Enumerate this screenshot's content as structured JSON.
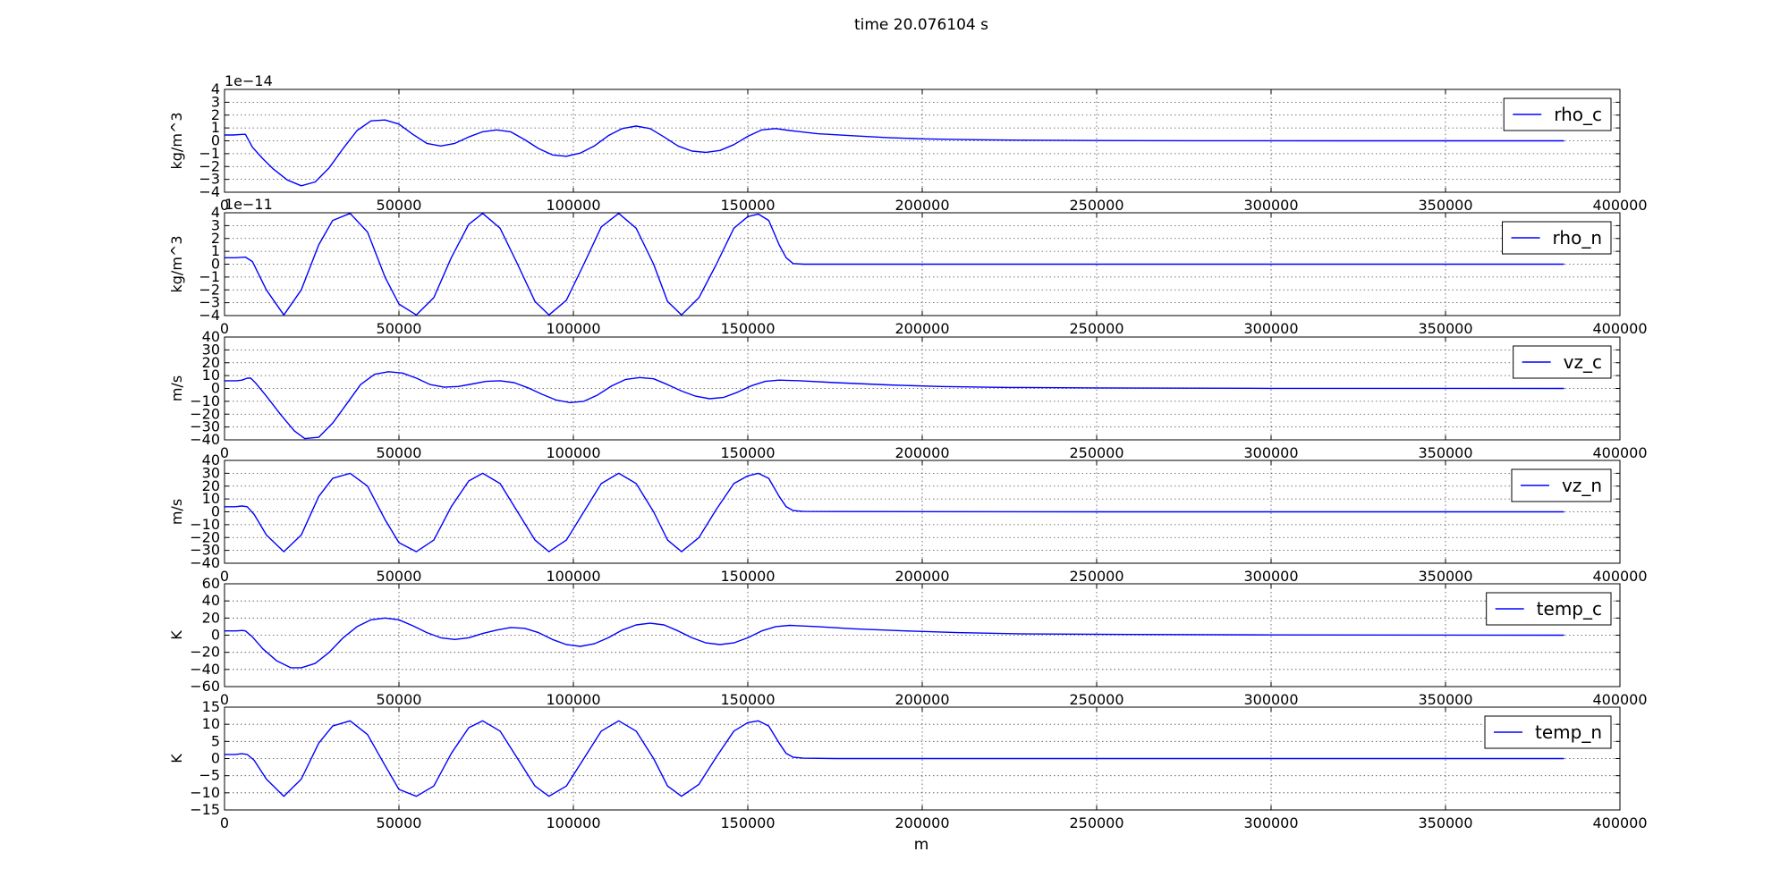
{
  "figure": {
    "title": "time 20.076104 s",
    "xlabel": "m"
  },
  "colors": {
    "line": "#0000ff",
    "grid": "#000000",
    "axes": "#000000",
    "background": "#ffffff"
  },
  "chart_data": [
    {
      "type": "line",
      "name": "rho_c",
      "legend": "rho_c",
      "legend_loc": "upper right",
      "ylabel": "kg/m^3",
      "offset_label": "1e−14",
      "scale_note": "values in units of 1e-14",
      "xlim": [
        0,
        400000
      ],
      "ylim": [
        -4,
        4
      ],
      "xticks": [
        0,
        50000,
        100000,
        150000,
        200000,
        250000,
        300000,
        350000,
        400000
      ],
      "xtick_labels": [
        "0",
        "50000",
        "100000",
        "150000",
        "200000",
        "250000",
        "300000",
        "350000",
        "400000"
      ],
      "yticks": [
        -4,
        -3,
        -2,
        -1,
        0,
        1,
        2,
        3,
        4
      ],
      "ytick_labels": [
        "−4",
        "−3",
        "−2",
        "−1",
        "0",
        "1",
        "2",
        "3",
        "4"
      ],
      "grid": true,
      "x": [
        0,
        2500,
        5000,
        6000,
        8000,
        11000,
        14000,
        18000,
        22000,
        26000,
        30000,
        34000,
        38000,
        42000,
        46000,
        50000,
        54000,
        58000,
        62000,
        66000,
        70000,
        74000,
        78000,
        82000,
        86000,
        90000,
        94000,
        98000,
        102000,
        106000,
        110000,
        114000,
        118000,
        122000,
        126000,
        130000,
        134000,
        138000,
        142000,
        146000,
        150000,
        154000,
        158000,
        162000,
        170000,
        180000,
        190000,
        200000,
        215000,
        230000,
        250000,
        280000,
        320000,
        384000
      ],
      "y": [
        0.45,
        0.45,
        0.5,
        0.5,
        -0.5,
        -1.4,
        -2.2,
        -3.05,
        -3.5,
        -3.2,
        -2.1,
        -0.6,
        0.8,
        1.55,
        1.62,
        1.3,
        0.5,
        -0.2,
        -0.4,
        -0.2,
        0.3,
        0.7,
        0.85,
        0.7,
        0.1,
        -0.6,
        -1.1,
        -1.2,
        -0.95,
        -0.4,
        0.4,
        0.95,
        1.15,
        0.95,
        0.3,
        -0.4,
        -0.8,
        -0.9,
        -0.75,
        -0.3,
        0.35,
        0.85,
        0.95,
        0.8,
        0.55,
        0.4,
        0.25,
        0.15,
        0.08,
        0.05,
        0.02,
        0.01,
        0,
        0
      ]
    },
    {
      "type": "line",
      "name": "rho_n",
      "legend": "rho_n",
      "legend_loc": "upper right",
      "ylabel": "kg/m^3",
      "offset_label": "1e−11",
      "scale_note": "values in units of 1e-11",
      "xlim": [
        0,
        400000
      ],
      "ylim": [
        -4,
        4
      ],
      "xticks": [
        0,
        50000,
        100000,
        150000,
        200000,
        250000,
        300000,
        350000,
        400000
      ],
      "xtick_labels": [
        "0",
        "50000",
        "100000",
        "150000",
        "200000",
        "250000",
        "300000",
        "350000",
        "400000"
      ],
      "yticks": [
        -4,
        -3,
        -2,
        -1,
        0,
        1,
        2,
        3,
        4
      ],
      "ytick_labels": [
        "−4",
        "−3",
        "−2",
        "−1",
        "0",
        "1",
        "2",
        "3",
        "4"
      ],
      "grid": true,
      "x": [
        0,
        3000,
        6000,
        8000,
        12000,
        17000,
        22000,
        27000,
        31000,
        36000,
        41000,
        46000,
        50000,
        55000,
        60000,
        65000,
        70000,
        74000,
        79000,
        84000,
        89000,
        93000,
        98000,
        103000,
        108000,
        113000,
        118000,
        123000,
        127000,
        131000,
        136000,
        141000,
        146000,
        150000,
        153000,
        156000,
        159000,
        161000,
        163000,
        166000,
        175000,
        250000,
        384000
      ],
      "y": [
        0.5,
        0.5,
        0.55,
        0.2,
        -2.0,
        -3.95,
        -2.0,
        1.5,
        3.4,
        3.95,
        2.5,
        -1.0,
        -3.1,
        -3.95,
        -2.6,
        0.5,
        3.1,
        3.95,
        2.8,
        0,
        -2.9,
        -3.95,
        -2.8,
        0,
        2.9,
        3.95,
        2.8,
        0,
        -2.9,
        -3.95,
        -2.6,
        0,
        2.8,
        3.7,
        3.9,
        3.4,
        1.5,
        0.5,
        0.05,
        0.0,
        0,
        0,
        0
      ]
    },
    {
      "type": "line",
      "name": "vz_c",
      "legend": "vz_c",
      "legend_loc": "upper right",
      "ylabel": "m/s",
      "xlim": [
        0,
        400000
      ],
      "ylim": [
        -40,
        40
      ],
      "xticks": [
        0,
        50000,
        100000,
        150000,
        200000,
        250000,
        300000,
        350000,
        400000
      ],
      "xtick_labels": [
        "0",
        "50000",
        "100000",
        "150000",
        "200000",
        "250000",
        "300000",
        "350000",
        "400000"
      ],
      "yticks": [
        -40,
        -30,
        -20,
        -10,
        0,
        10,
        20,
        30,
        40
      ],
      "ytick_labels": [
        "−40",
        "−30",
        "−20",
        "−10",
        "0",
        "10",
        "20",
        "30",
        "40"
      ],
      "grid": true,
      "x": [
        0,
        3500,
        5000,
        6500,
        7500,
        9000,
        12000,
        16000,
        20000,
        23000,
        27000,
        31000,
        35000,
        39000,
        43000,
        47000,
        51000,
        55000,
        59000,
        63000,
        67000,
        71000,
        75000,
        79000,
        83000,
        87000,
        91000,
        95000,
        99000,
        103000,
        107000,
        111000,
        115000,
        119000,
        123000,
        127000,
        131000,
        135000,
        139000,
        143000,
        147000,
        151000,
        155000,
        159000,
        165000,
        175000,
        190000,
        205000,
        225000,
        250000,
        300000,
        384000
      ],
      "y": [
        6,
        6,
        6.5,
        8,
        8,
        4,
        -6,
        -20,
        -33,
        -39,
        -38,
        -27,
        -12,
        3,
        11,
        13,
        12,
        8,
        3,
        1,
        1.5,
        3.5,
        5.5,
        6,
        4.5,
        0.5,
        -4.5,
        -9,
        -11,
        -10,
        -5,
        2,
        7,
        8.5,
        7.5,
        3,
        -2,
        -6,
        -8,
        -7,
        -3,
        2,
        5.5,
        6.5,
        6,
        4.5,
        2.8,
        1.5,
        0.8,
        0.4,
        0.1,
        0
      ]
    },
    {
      "type": "line",
      "name": "vz_n",
      "legend": "vz_n",
      "legend_loc": "upper right",
      "ylabel": "m/s",
      "xlim": [
        0,
        400000
      ],
      "ylim": [
        -40,
        40
      ],
      "xticks": [
        0,
        50000,
        100000,
        150000,
        200000,
        250000,
        300000,
        350000,
        400000
      ],
      "xtick_labels": [
        "0",
        "50000",
        "100000",
        "150000",
        "200000",
        "250000",
        "300000",
        "350000",
        "400000"
      ],
      "yticks": [
        -40,
        -30,
        -20,
        -10,
        0,
        10,
        20,
        30,
        40
      ],
      "ytick_labels": [
        "−40",
        "−30",
        "−20",
        "−10",
        "0",
        "10",
        "20",
        "30",
        "40"
      ],
      "grid": true,
      "x": [
        0,
        3000,
        5000,
        6500,
        8500,
        12000,
        17000,
        22000,
        27000,
        31000,
        36000,
        41000,
        46000,
        50000,
        55000,
        60000,
        65000,
        70000,
        74000,
        79000,
        84000,
        89000,
        93000,
        98000,
        103000,
        108000,
        113000,
        118000,
        123000,
        127000,
        131000,
        136000,
        141000,
        146000,
        150000,
        153000,
        156000,
        159000,
        161000,
        163000,
        166000,
        175000,
        250000,
        384000
      ],
      "y": [
        4,
        4,
        4.5,
        4,
        -2,
        -18,
        -31,
        -18,
        12,
        26,
        30,
        20,
        -6,
        -24,
        -31,
        -22,
        4,
        24,
        30,
        22,
        0,
        -22,
        -31,
        -22,
        0,
        22,
        30,
        22,
        0,
        -22,
        -31,
        -20,
        2,
        22,
        28,
        30,
        26,
        12,
        4,
        1,
        0.3,
        0.2,
        0,
        0
      ]
    },
    {
      "type": "line",
      "name": "temp_c",
      "legend": "temp_c",
      "legend_loc": "upper right",
      "ylabel": "K",
      "xlim": [
        0,
        400000
      ],
      "ylim": [
        -60,
        60
      ],
      "xticks": [
        0,
        50000,
        100000,
        150000,
        200000,
        250000,
        300000,
        350000,
        400000
      ],
      "xtick_labels": [
        "0",
        "50000",
        "100000",
        "150000",
        "200000",
        "250000",
        "300000",
        "350000",
        "400000"
      ],
      "yticks": [
        -60,
        -40,
        -20,
        0,
        20,
        40,
        60
      ],
      "ytick_labels": [
        "−60",
        "−40",
        "−20",
        "0",
        "20",
        "40",
        "60"
      ],
      "grid": true,
      "x": [
        0,
        3500,
        5000,
        6000,
        8000,
        11000,
        15000,
        19000,
        22000,
        26000,
        30000,
        34000,
        38000,
        42000,
        46000,
        50000,
        54000,
        58000,
        62000,
        66000,
        70000,
        74000,
        78000,
        82000,
        86000,
        90000,
        94000,
        98000,
        102000,
        106000,
        110000,
        114000,
        118000,
        122000,
        126000,
        130000,
        134000,
        138000,
        142000,
        146000,
        150000,
        154000,
        158000,
        162000,
        170000,
        180000,
        195000,
        210000,
        230000,
        260000,
        300000,
        384000
      ],
      "y": [
        5,
        5,
        5.5,
        5,
        -2,
        -16,
        -30,
        -38,
        -38,
        -33,
        -20,
        -3,
        10,
        18,
        20,
        18,
        11,
        3,
        -3,
        -5,
        -3,
        2,
        6,
        9,
        8,
        3,
        -5,
        -11,
        -13,
        -10,
        -3,
        6,
        12,
        14,
        12,
        5,
        -3,
        -9,
        -11,
        -9,
        -3,
        5,
        10,
        11.5,
        10,
        7.5,
        5,
        3,
        1.5,
        0.8,
        0.3,
        0
      ]
    },
    {
      "type": "line",
      "name": "temp_n",
      "legend": "temp_n",
      "legend_loc": "upper right",
      "ylabel": "K",
      "xlim": [
        0,
        400000
      ],
      "ylim": [
        -15,
        15
      ],
      "xticks": [
        0,
        50000,
        100000,
        150000,
        200000,
        250000,
        300000,
        350000,
        400000
      ],
      "xtick_labels": [
        "0",
        "50000",
        "100000",
        "150000",
        "200000",
        "250000",
        "300000",
        "350000",
        "400000"
      ],
      "yticks": [
        -15,
        -10,
        -5,
        0,
        5,
        10,
        15
      ],
      "ytick_labels": [
        "−15",
        "−10",
        "−5",
        "0",
        "5",
        "10",
        "15"
      ],
      "grid": true,
      "x": [
        0,
        3000,
        5000,
        6500,
        8500,
        12000,
        17000,
        22000,
        27000,
        31000,
        36000,
        41000,
        46000,
        50000,
        55000,
        60000,
        65000,
        70000,
        74000,
        79000,
        84000,
        89000,
        93000,
        98000,
        103000,
        108000,
        113000,
        118000,
        123000,
        127000,
        131000,
        136000,
        141000,
        146000,
        150000,
        153000,
        156000,
        159000,
        161000,
        163000,
        166000,
        175000,
        250000,
        384000
      ],
      "y": [
        1.2,
        1.2,
        1.4,
        1.2,
        -0.5,
        -6,
        -11,
        -6,
        4.5,
        9.5,
        11,
        7,
        -2,
        -9,
        -11,
        -8,
        1.5,
        9,
        11,
        8,
        0,
        -8,
        -11,
        -8,
        0,
        8,
        11,
        8,
        0,
        -8,
        -11,
        -7.5,
        0.5,
        8,
        10.5,
        11,
        9.5,
        4.5,
        1.5,
        0.4,
        0.1,
        0,
        0,
        0
      ]
    }
  ]
}
